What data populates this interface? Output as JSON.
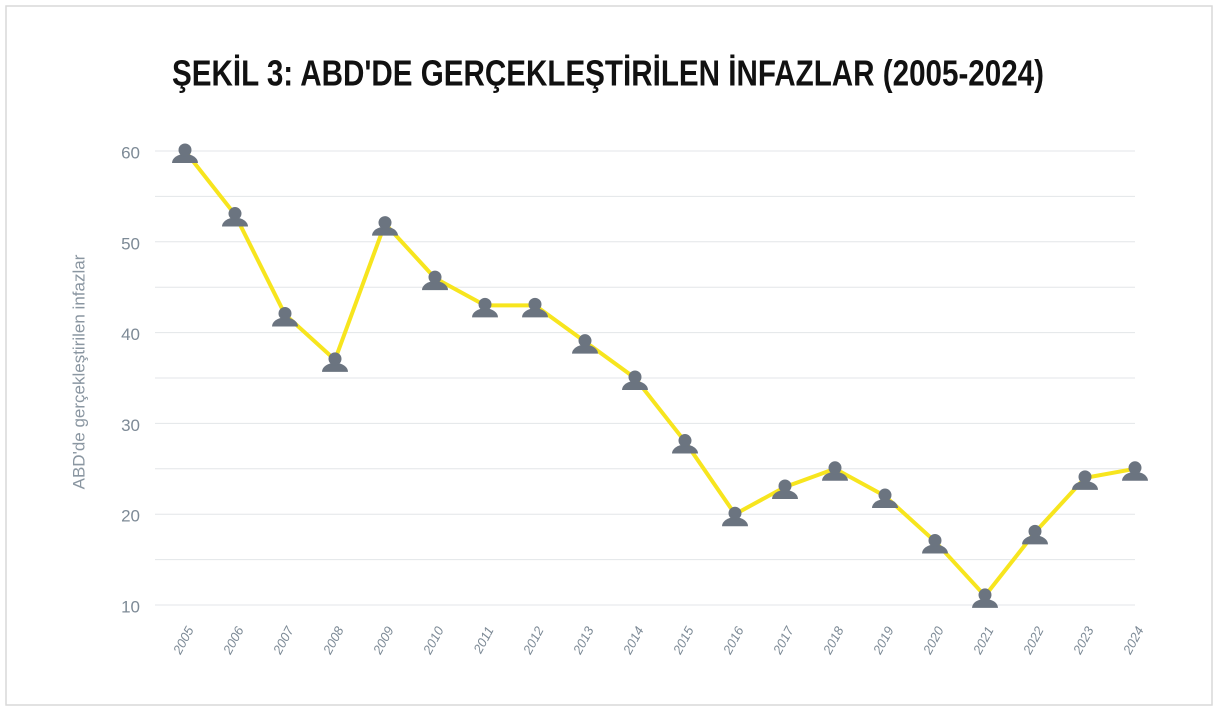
{
  "chart_data": {
    "type": "line",
    "title": "ŞEKİL 3: ABD'DE GERÇEKLEŞTİRİLEN İNFAZLAR (2005-2024)",
    "y_label": "ABD'de gerçekleştirilen infazlar",
    "categories": [
      "2005",
      "2006",
      "2007",
      "2008",
      "2009",
      "2010",
      "2011",
      "2012",
      "2013",
      "2014",
      "2015",
      "2016",
      "2017",
      "2018",
      "2019",
      "2020",
      "2021",
      "2022",
      "2023",
      "2024"
    ],
    "values": [
      60,
      53,
      42,
      37,
      52,
      46,
      43,
      43,
      39,
      35,
      28,
      20,
      23,
      25,
      22,
      17,
      11,
      18,
      24,
      25
    ],
    "color": "#f7e51e",
    "marker_color": "#6b7480",
    "ylim": [
      10,
      60
    ],
    "yticks": [
      10,
      20,
      30,
      40,
      50,
      60
    ],
    "minor_yticks": [
      15,
      25,
      35,
      45,
      55
    ],
    "grid": true
  }
}
